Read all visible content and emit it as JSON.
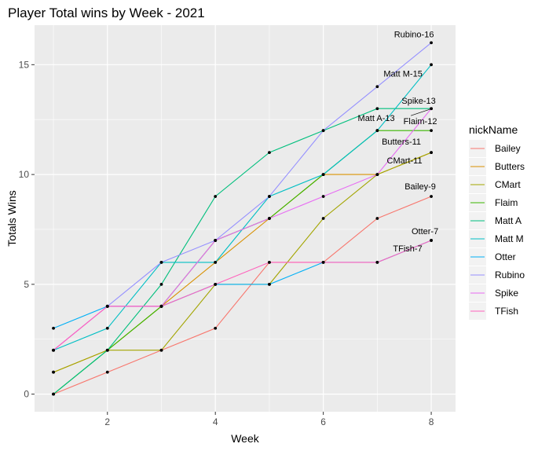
{
  "chart_data": {
    "type": "line",
    "title": "Player Total wins by Week - 2021",
    "xlabel": "Week",
    "ylabel": "Totals Wins",
    "xlim": [
      0.65,
      8.45
    ],
    "ylim": [
      -0.8,
      16.8
    ],
    "x_ticks": [
      2,
      4,
      6,
      8
    ],
    "y_ticks": [
      0,
      5,
      10,
      15
    ],
    "x_tick_labels": [
      "2",
      "4",
      "6",
      "8"
    ],
    "y_tick_labels": [
      "0",
      "5",
      "10",
      "15"
    ],
    "grid": true,
    "legend": {
      "title": "nickName",
      "position": "right"
    },
    "x": [
      1,
      2,
      3,
      4,
      5,
      6,
      7,
      8
    ],
    "series": [
      {
        "name": "Bailey",
        "color": "#F8766D",
        "values": [
          0,
          1,
          2,
          3,
          6,
          6,
          8,
          9
        ]
      },
      {
        "name": "Butters",
        "color": "#D89000",
        "values": [
          1,
          2,
          4,
          6,
          8,
          10,
          10,
          11
        ]
      },
      {
        "name": "CMart",
        "color": "#A3A500",
        "values": [
          1,
          2,
          2,
          5,
          5,
          8,
          10,
          11
        ]
      },
      {
        "name": "Flaim",
        "color": "#39B600",
        "values": [
          0,
          2,
          4,
          7,
          8,
          10,
          12,
          12
        ]
      },
      {
        "name": "Matt A",
        "color": "#00BF7D",
        "values": [
          0,
          2,
          5,
          9,
          11,
          12,
          13,
          13
        ]
      },
      {
        "name": "Matt M",
        "color": "#00BFC4",
        "values": [
          2,
          3,
          6,
          6,
          9,
          10,
          12,
          15
        ]
      },
      {
        "name": "Otter",
        "color": "#00B0F6",
        "values": [
          3,
          4,
          4,
          5,
          5,
          6,
          6,
          7
        ]
      },
      {
        "name": "Rubino",
        "color": "#9590FF",
        "values": [
          2,
          4,
          6,
          7,
          9,
          12,
          14,
          16
        ]
      },
      {
        "name": "Spike",
        "color": "#E76BF3",
        "values": [
          2,
          4,
          4,
          7,
          8,
          9,
          10,
          13
        ]
      },
      {
        "name": "TFish",
        "color": "#FF62BC",
        "values": [
          2,
          4,
          4,
          5,
          6,
          6,
          6,
          7
        ]
      }
    ],
    "end_labels": [
      "Rubino-16",
      "Matt M-15",
      "Spike-13",
      "Matt A-13",
      "Flaim-12",
      "Butters-11",
      "CMart-11",
      "Bailey-9",
      "Otter-7",
      "TFish-7"
    ]
  }
}
